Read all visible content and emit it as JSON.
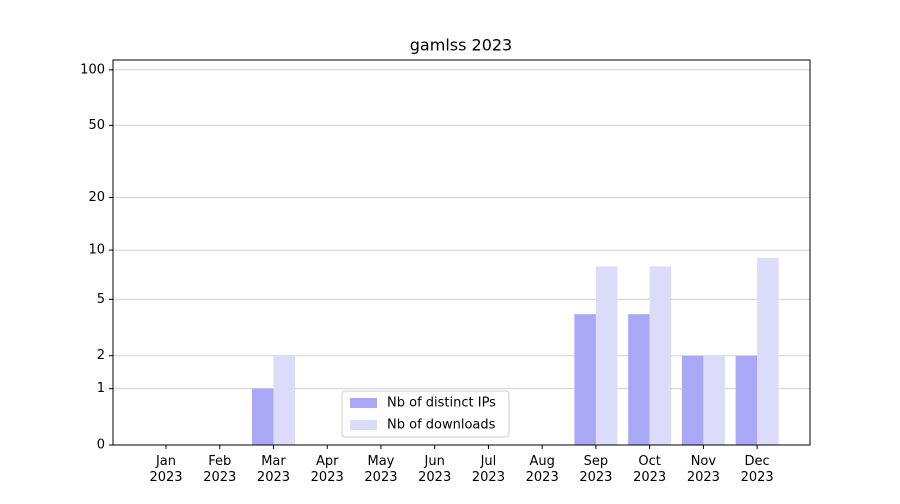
{
  "chart_data": {
    "type": "bar",
    "title": "gamlss 2023",
    "categories": [
      "Jan 2023",
      "Feb 2023",
      "Mar 2023",
      "Apr 2023",
      "May 2023",
      "Jun 2023",
      "Jul 2023",
      "Aug 2023",
      "Sep 2023",
      "Oct 2023",
      "Nov 2023",
      "Dec 2023"
    ],
    "series": [
      {
        "name": "Nb of distinct IPs",
        "color": "#a8a8f6",
        "values": [
          0,
          0,
          1,
          0,
          0,
          0,
          0,
          0,
          4,
          4,
          2,
          2
        ]
      },
      {
        "name": "Nb of downloads",
        "color": "#dcdcfa",
        "values": [
          0,
          0,
          2,
          0,
          0,
          0,
          0,
          0,
          8,
          8,
          2,
          9
        ]
      }
    ],
    "yscale": "log1p",
    "ylim": [
      0,
      113
    ],
    "yticks": [
      0,
      1,
      2,
      5,
      10,
      20,
      50,
      100
    ],
    "grid": true,
    "legend": "lower center"
  }
}
